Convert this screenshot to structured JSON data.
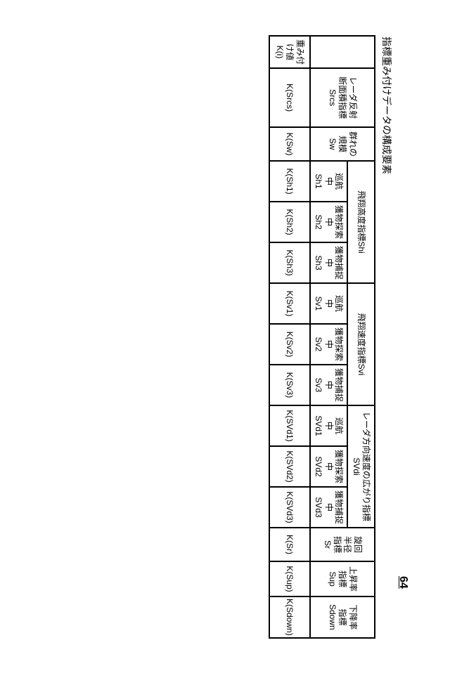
{
  "figure_label": "64",
  "title": "指標重み付けデータの構成要素",
  "columns": {
    "row_label_header": "",
    "srcs": "レーダ反射\n断面積指標\nSrcs",
    "sw": "群れの\n規模\nSw",
    "shi_group": "飛翔高度指標Shi",
    "sh1": "巡航\n中\nSh1",
    "sh2": "獲物探索\n中\nSh2",
    "sh3": "獲物捕捉\n中\nSh3",
    "svi_group": "飛翔速度指標Svi",
    "sv1": "巡航\n中\nSv1",
    "sv2": "獲物探索\n中\nSv2",
    "sv3": "獲物捕捉\n中\nSv3",
    "svdi_group": "レーダ方向速度の広がり指標SVdi",
    "svd1": "巡航\n中\nSVd1",
    "svd2": "獲物探索\n中\nSVd2",
    "svd3": "獲物捕捉\n中\nSVd3",
    "sr": "旋回\n半径\n指標\nSr",
    "sup": "上昇率\n指標\nSup",
    "sdown": "下降率\n指標\nSdown"
  },
  "row": {
    "label": "重み付\nけ値\nK(i)",
    "srcs": "K(Srcs)",
    "sw": "K(Sw)",
    "sh1": "K(Sh1)",
    "sh2": "K(Sh2)",
    "sh3": "K(Sh3)",
    "sv1": "K(Sv1)",
    "sv2": "K(Sv2)",
    "sv3": "K(Sv3)",
    "svd1": "K(SVd1)",
    "svd2": "K(SVd2)",
    "svd3": "K(SVd3)",
    "sr": "K(Sr)",
    "sup": "K(Sup)",
    "sdown": "K(Sdown)"
  }
}
